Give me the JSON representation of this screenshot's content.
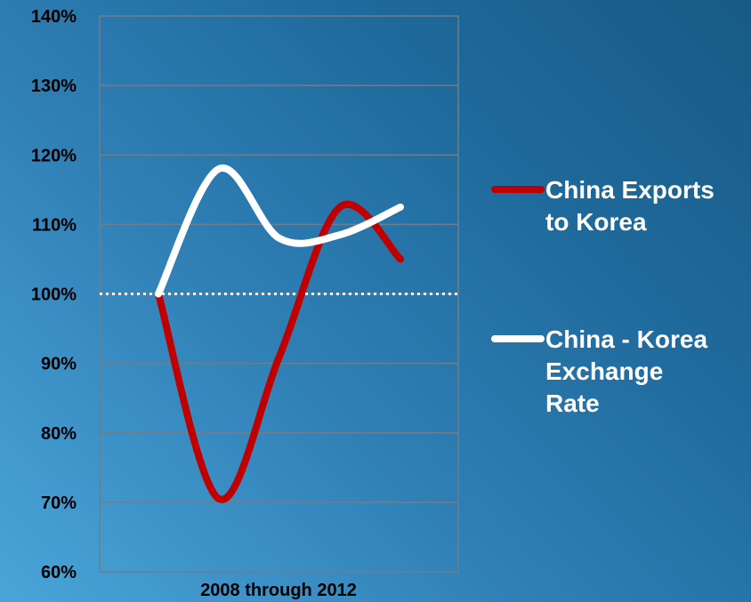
{
  "chart_data": {
    "type": "line",
    "title": "",
    "xlabel": "2008 through 2012",
    "ylabel": "",
    "ylim": [
      60,
      140
    ],
    "ytick_step": 10,
    "yticks": [
      "60%",
      "70%",
      "80%",
      "90%",
      "100%",
      "110%",
      "120%",
      "130%",
      "140%"
    ],
    "grid": true,
    "legend_position": "right",
    "reference_line": {
      "value": 100,
      "style": "dotted",
      "color": "#ffffff"
    },
    "series": [
      {
        "name": "China Exports to Korea",
        "legend_lines": [
          "China Exports",
          "to Korea"
        ],
        "color": "#c00000",
        "values": [
          100,
          70.5,
          91,
          112.5,
          105
        ]
      },
      {
        "name": "China - Korea Exchange Rate",
        "legend_lines": [
          "China - Korea",
          "Exchange",
          "Rate"
        ],
        "color": "#ffffff",
        "values": [
          100,
          118,
          108,
          108.5,
          112.5
        ]
      }
    ]
  }
}
